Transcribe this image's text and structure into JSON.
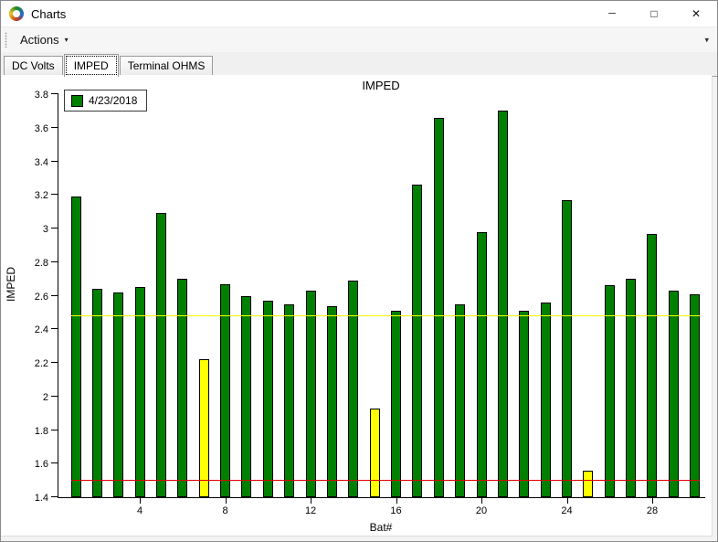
{
  "window": {
    "title": "Charts",
    "controls": {
      "minimize": "─",
      "maximize": "□",
      "close": "✕"
    }
  },
  "toolbar": {
    "actions_label": "Actions",
    "actions_arrow": "▾",
    "overflow_arrow": "▾"
  },
  "tabs": [
    {
      "label": "DC Volts",
      "selected": false
    },
    {
      "label": "IMPED",
      "selected": true
    },
    {
      "label": "Terminal OHMS",
      "selected": false
    }
  ],
  "chart_data": {
    "type": "bar",
    "title": "IMPED",
    "xlabel": "Bat#",
    "ylabel": "IMPED",
    "legend": [
      {
        "label": "4/23/2018",
        "color": "#008000"
      }
    ],
    "legend_position": "top-left",
    "grid": false,
    "categories": [
      1,
      2,
      3,
      4,
      5,
      6,
      7,
      8,
      9,
      10,
      11,
      12,
      13,
      14,
      15,
      16,
      17,
      18,
      19,
      20,
      21,
      22,
      23,
      24,
      25,
      26,
      27,
      28,
      29,
      30
    ],
    "values": [
      3.19,
      2.64,
      2.62,
      2.65,
      3.09,
      2.7,
      2.22,
      2.67,
      2.6,
      2.57,
      2.55,
      2.63,
      2.54,
      2.69,
      1.93,
      2.51,
      3.26,
      3.66,
      2.55,
      2.98,
      3.7,
      2.51,
      2.56,
      3.17,
      1.56,
      2.66,
      2.7,
      2.97,
      2.63,
      2.61
    ],
    "bar_color": "#008000",
    "flagged_bars": [
      7,
      15,
      25
    ],
    "flagged_color": "#ffff00",
    "ylim": [
      1.4,
      3.8
    ],
    "yticks": [
      1.4,
      1.6,
      1.8,
      2.0,
      2.2,
      2.4,
      2.6,
      2.8,
      3.0,
      3.2,
      3.4,
      3.6,
      3.8
    ],
    "ytick_labels": [
      "1.4",
      "1.6",
      "1.8",
      "2",
      "2.2",
      "2.4",
      "2.6",
      "2.8",
      "3",
      "3.2",
      "3.4",
      "3.6",
      "3.8"
    ],
    "xticks": [
      4,
      8,
      12,
      16,
      20,
      24,
      28
    ],
    "ref_lines": [
      {
        "value": 2.475,
        "color": "#ffff00",
        "name": "upper-reference"
      },
      {
        "value": 1.5,
        "color": "#dd0000",
        "name": "lower-reference"
      }
    ]
  }
}
